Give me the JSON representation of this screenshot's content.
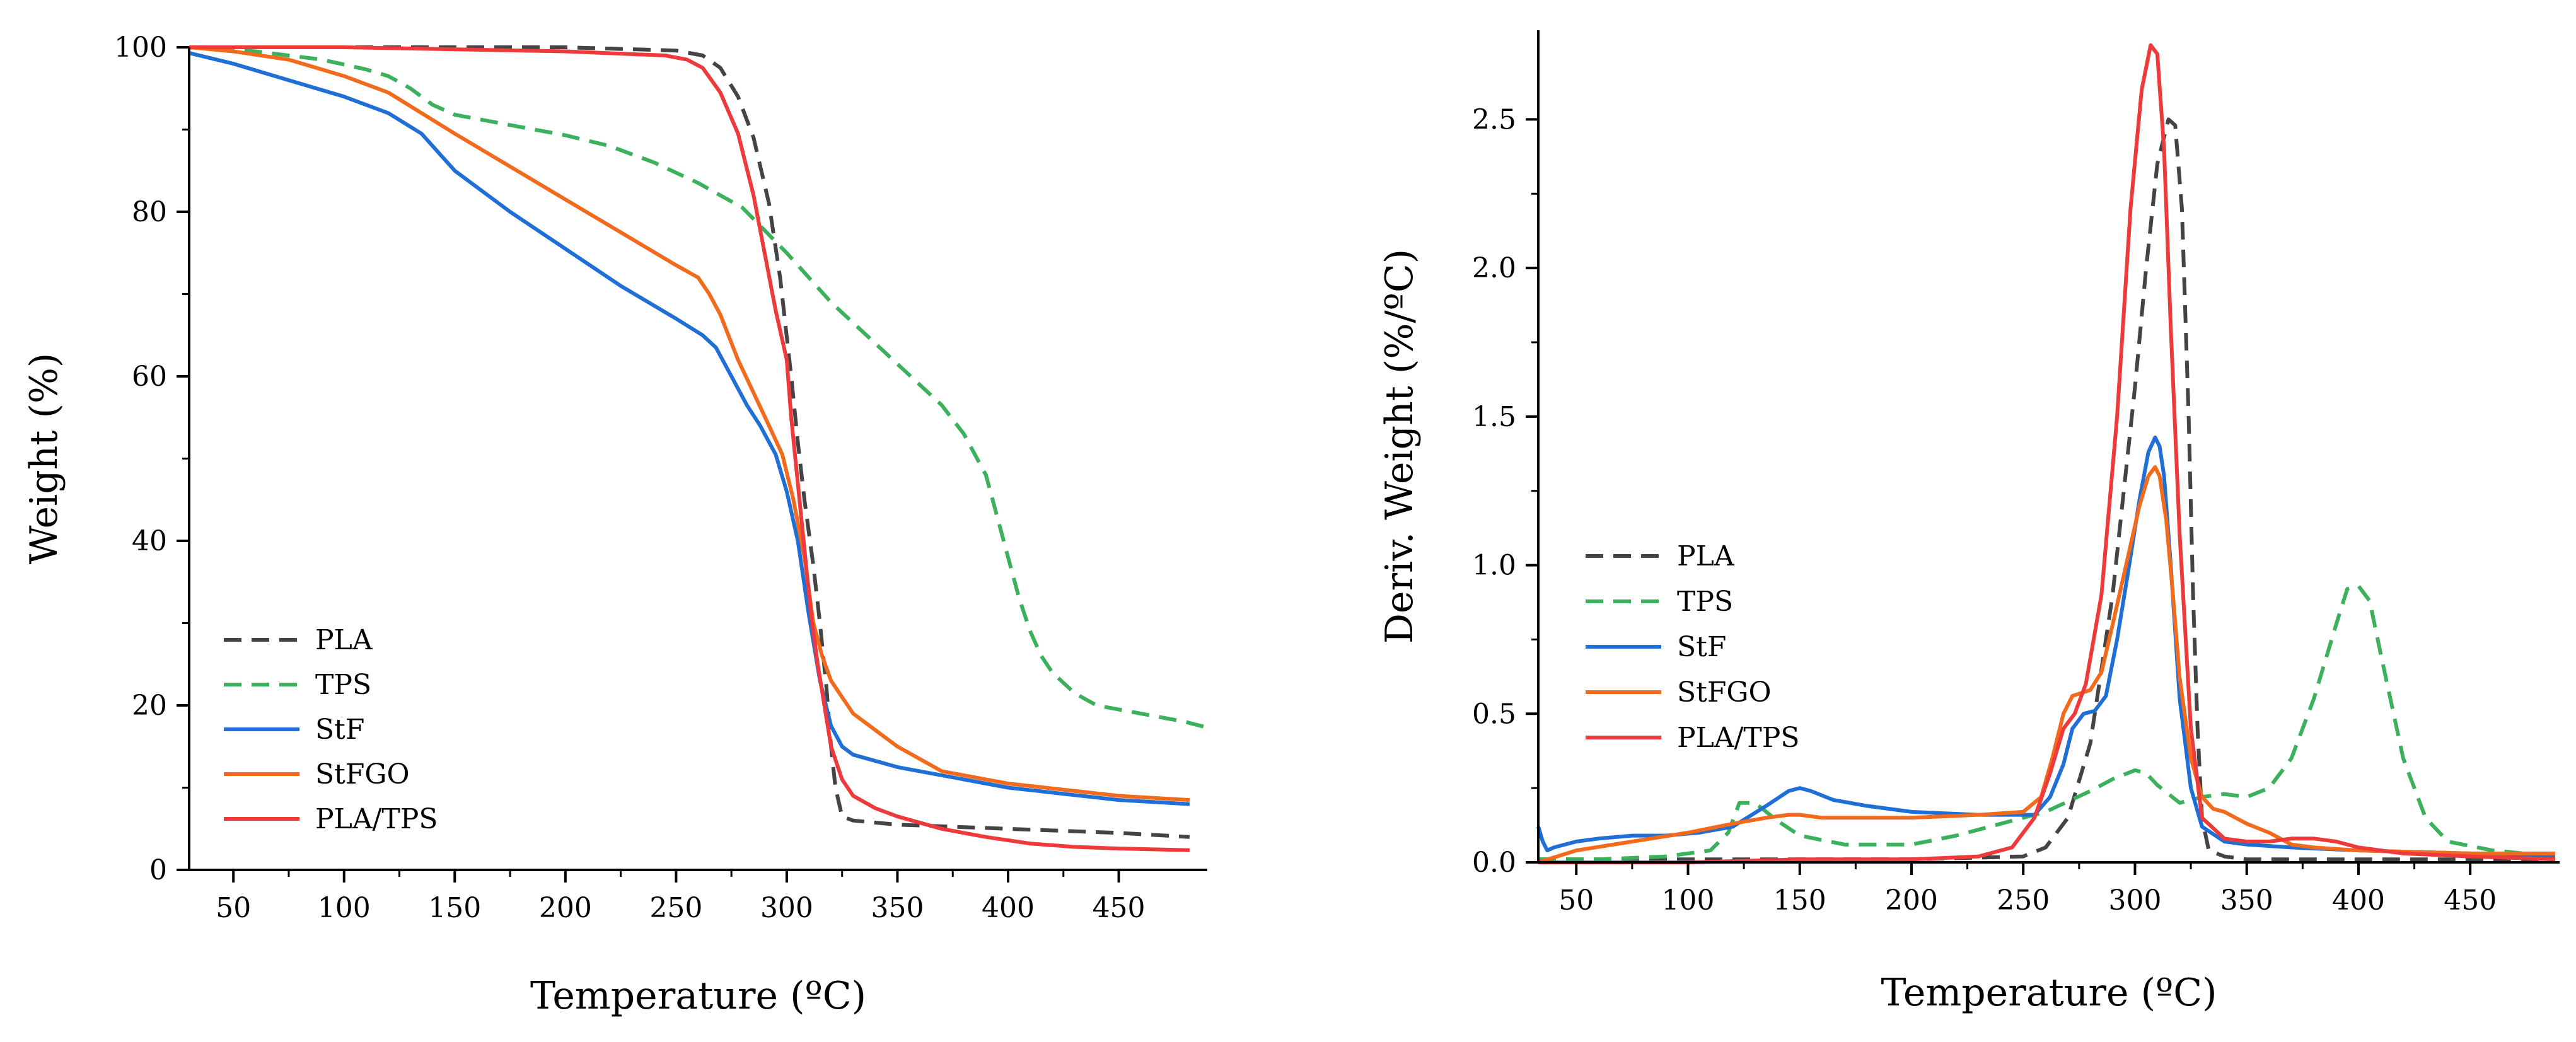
{
  "chart_data": [
    {
      "type": "line",
      "xlabel": "Temperature (ºC)",
      "ylabel": "Weight (%)",
      "xlim": [
        30,
        490
      ],
      "ylim": [
        0,
        100
      ],
      "xticks": [
        50,
        100,
        150,
        200,
        250,
        300,
        350,
        400,
        450
      ],
      "yticks": [
        0,
        20,
        40,
        60,
        80,
        100
      ],
      "legend_position": "bottom-left",
      "series": [
        {
          "name": "PLA",
          "color": "#444444",
          "dash": true,
          "x": [
            30,
            100,
            200,
            250,
            262,
            270,
            278,
            285,
            292,
            297,
            302,
            305,
            308,
            312,
            315,
            318,
            320,
            322,
            325,
            330,
            350,
            400,
            450,
            482
          ],
          "y": [
            100,
            100,
            100,
            99.6,
            99,
            97.5,
            94,
            89,
            81,
            72,
            60,
            52,
            45,
            37,
            30,
            22,
            15,
            10,
            6.5,
            6,
            5.5,
            5,
            4.5,
            4
          ]
        },
        {
          "name": "TPS",
          "color": "#3cb15c",
          "dash": true,
          "x": [
            30,
            60,
            90,
            110,
            120,
            130,
            140,
            150,
            170,
            200,
            220,
            240,
            260,
            280,
            300,
            320,
            340,
            360,
            370,
            380,
            390,
            395,
            400,
            405,
            410,
            415,
            420,
            430,
            440,
            460,
            480,
            490
          ],
          "y": [
            100,
            99.5,
            98.5,
            97.3,
            96.5,
            95,
            93,
            91.8,
            90.8,
            89.3,
            88,
            86,
            83.5,
            80.5,
            75,
            69,
            64,
            59,
            56.5,
            53,
            48,
            43,
            38,
            33,
            29,
            26,
            24,
            21.5,
            20,
            19,
            18,
            17.3
          ]
        },
        {
          "name": "StF",
          "color": "#1f6fd6",
          "dash": false,
          "x": [
            30,
            50,
            75,
            100,
            120,
            135,
            150,
            175,
            200,
            225,
            250,
            262,
            268,
            275,
            282,
            288,
            295,
            300,
            305,
            310,
            315,
            320,
            325,
            330,
            350,
            400,
            450,
            482
          ],
          "y": [
            99.3,
            98,
            96,
            94,
            92,
            89.5,
            85,
            80,
            75.5,
            71,
            67,
            65,
            63.5,
            60,
            56.5,
            54,
            50.5,
            46,
            40,
            31,
            23,
            17.5,
            15,
            14,
            12.5,
            10,
            8.5,
            8
          ]
        },
        {
          "name": "StFGO",
          "color": "#f26b1d",
          "dash": false,
          "x": [
            30,
            50,
            75,
            100,
            120,
            150,
            175,
            200,
            225,
            250,
            260,
            265,
            270,
            278,
            285,
            292,
            298,
            303,
            308,
            312,
            316,
            320,
            325,
            330,
            340,
            350,
            370,
            400,
            450,
            482
          ],
          "y": [
            100,
            99.5,
            98.5,
            96.5,
            94.5,
            89.5,
            85.5,
            81.5,
            77.5,
            73.5,
            72,
            70,
            67.5,
            62,
            58,
            54,
            50.5,
            45,
            38,
            30,
            26,
            23,
            21,
            19,
            17,
            15,
            12,
            10.5,
            9,
            8.5
          ]
        },
        {
          "name": "PLA/TPS",
          "color": "#ee3a3a",
          "dash": false,
          "x": [
            30,
            100,
            200,
            245,
            255,
            262,
            270,
            278,
            285,
            290,
            295,
            300,
            302,
            305,
            308,
            311,
            314,
            317,
            320,
            325,
            330,
            340,
            350,
            370,
            390,
            410,
            430,
            450,
            482
          ],
          "y": [
            100,
            100,
            99.5,
            99,
            98.5,
            97.5,
            94.5,
            89.5,
            82,
            75,
            68,
            62,
            55,
            47,
            39,
            31,
            25,
            20,
            15,
            11,
            9,
            7.5,
            6.5,
            5,
            4,
            3.2,
            2.8,
            2.6,
            2.4
          ]
        }
      ]
    },
    {
      "type": "line",
      "xlabel": "Temperature (ºC)",
      "ylabel": "Deriv. Weight (%/ºC)",
      "xlim": [
        33,
        490
      ],
      "ylim": [
        0,
        2.8
      ],
      "xticks": [
        50,
        100,
        150,
        200,
        250,
        300,
        350,
        400,
        450
      ],
      "yticks": [
        0.0,
        0.5,
        1.0,
        1.5,
        2.0,
        2.5
      ],
      "ytick_labels": [
        "0.0",
        "0.5",
        "1.0",
        "1.5",
        "2.0",
        "2.5"
      ],
      "legend_position": "center-left",
      "series": [
        {
          "name": "PLA",
          "color": "#444444",
          "dash": true,
          "x": [
            33,
            100,
            200,
            250,
            260,
            270,
            280,
            290,
            300,
            305,
            310,
            315,
            318,
            321,
            324,
            326,
            328,
            330,
            333,
            340,
            350,
            400,
            450,
            488
          ],
          "y": [
            0.01,
            0.01,
            0.01,
            0.02,
            0.05,
            0.15,
            0.4,
            0.9,
            1.6,
            2.0,
            2.35,
            2.5,
            2.48,
            2.2,
            1.5,
            0.9,
            0.45,
            0.15,
            0.04,
            0.02,
            0.01,
            0.01,
            0.01,
            0.01
          ]
        },
        {
          "name": "TPS",
          "color": "#3cb15c",
          "dash": true,
          "x": [
            33,
            60,
            90,
            110,
            118,
            123,
            130,
            140,
            150,
            170,
            200,
            220,
            240,
            260,
            280,
            290,
            300,
            305,
            310,
            320,
            330,
            340,
            350,
            360,
            370,
            380,
            390,
            395,
            400,
            405,
            410,
            420,
            430,
            440,
            460,
            488
          ],
          "y": [
            0.01,
            0.01,
            0.02,
            0.04,
            0.1,
            0.2,
            0.2,
            0.14,
            0.09,
            0.06,
            0.06,
            0.09,
            0.13,
            0.17,
            0.24,
            0.28,
            0.31,
            0.3,
            0.26,
            0.2,
            0.22,
            0.23,
            0.22,
            0.25,
            0.35,
            0.55,
            0.8,
            0.92,
            0.93,
            0.88,
            0.7,
            0.35,
            0.15,
            0.07,
            0.04,
            0.02
          ]
        },
        {
          "name": "StF",
          "color": "#1f6fd6",
          "dash": false,
          "x": [
            33,
            35,
            37,
            40,
            50,
            60,
            75,
            90,
            105,
            120,
            135,
            145,
            150,
            155,
            165,
            180,
            200,
            230,
            255,
            262,
            268,
            272,
            277,
            282,
            287,
            292,
            297,
            302,
            306,
            309,
            311,
            313,
            316,
            320,
            325,
            330,
            340,
            350,
            370,
            400,
            450,
            488
          ],
          "y": [
            0.12,
            0.07,
            0.04,
            0.05,
            0.07,
            0.08,
            0.09,
            0.09,
            0.1,
            0.12,
            0.19,
            0.24,
            0.25,
            0.24,
            0.21,
            0.19,
            0.17,
            0.16,
            0.16,
            0.22,
            0.33,
            0.45,
            0.5,
            0.51,
            0.56,
            0.75,
            0.98,
            1.22,
            1.38,
            1.43,
            1.4,
            1.3,
            1.0,
            0.55,
            0.25,
            0.12,
            0.07,
            0.06,
            0.05,
            0.04,
            0.03,
            0.02
          ]
        },
        {
          "name": "StFGO",
          "color": "#f26b1d",
          "dash": false,
          "x": [
            33,
            50,
            75,
            100,
            120,
            135,
            145,
            150,
            160,
            180,
            200,
            230,
            250,
            258,
            263,
            268,
            272,
            276,
            280,
            285,
            290,
            296,
            302,
            306,
            309,
            311,
            314,
            317,
            320,
            325,
            330,
            335,
            340,
            350,
            360,
            370,
            380,
            400,
            450,
            488
          ],
          "y": [
            0.0,
            0.04,
            0.07,
            0.1,
            0.13,
            0.15,
            0.16,
            0.16,
            0.15,
            0.15,
            0.15,
            0.16,
            0.17,
            0.22,
            0.35,
            0.5,
            0.56,
            0.57,
            0.58,
            0.64,
            0.8,
            1.0,
            1.2,
            1.3,
            1.33,
            1.3,
            1.15,
            0.9,
            0.62,
            0.35,
            0.22,
            0.18,
            0.17,
            0.13,
            0.1,
            0.06,
            0.05,
            0.04,
            0.03,
            0.03
          ]
        },
        {
          "name": "PLA/TPS",
          "color": "#ee3a3a",
          "dash": false,
          "x": [
            33,
            100,
            150,
            200,
            230,
            245,
            255,
            262,
            268,
            273,
            278,
            285,
            292,
            298,
            303,
            307,
            310,
            313,
            316,
            320,
            325,
            330,
            340,
            350,
            360,
            370,
            380,
            390,
            400,
            420,
            450,
            488
          ],
          "y": [
            0.0,
            0.0,
            0.01,
            0.01,
            0.02,
            0.05,
            0.15,
            0.3,
            0.45,
            0.5,
            0.6,
            0.9,
            1.5,
            2.2,
            2.6,
            2.75,
            2.72,
            2.4,
            1.8,
            1.1,
            0.45,
            0.15,
            0.08,
            0.07,
            0.07,
            0.08,
            0.08,
            0.07,
            0.05,
            0.03,
            0.02,
            0.01
          ]
        }
      ]
    }
  ]
}
